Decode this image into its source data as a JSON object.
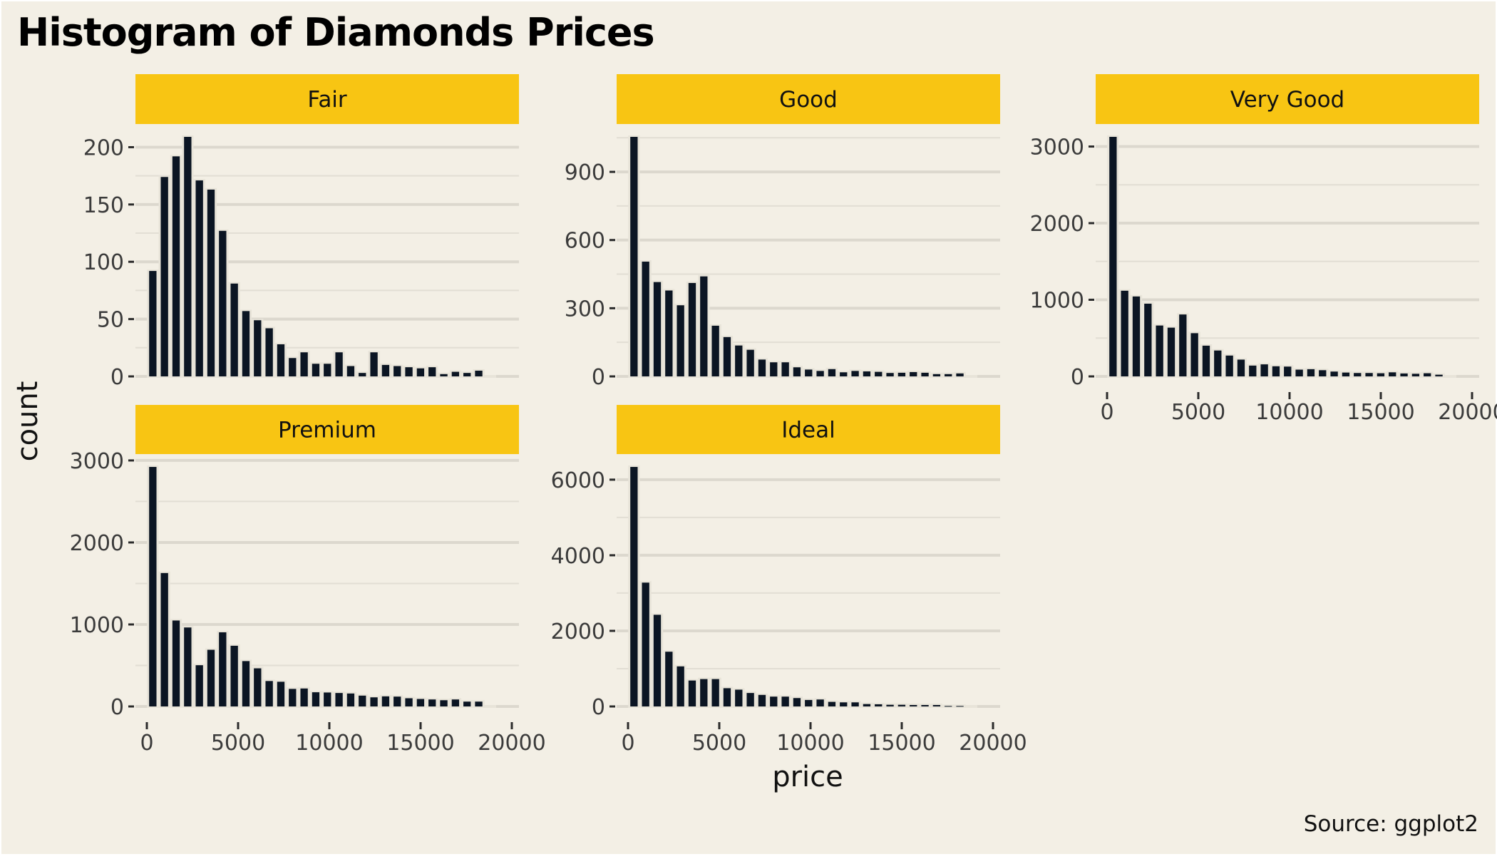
{
  "colors": {
    "background": "#F3EFE5",
    "strip": "#F8C513",
    "bar_fill": "#0B1523",
    "bar_outline": "#E8E4D9",
    "grid_major": "#DCD8CE",
    "grid_minor": "#E2DED4",
    "tick_mark": "#2b2b2b"
  },
  "chart_data": {
    "type": "bar",
    "subtype": "faceted histogram",
    "title": "Histogram of Diamonds Prices",
    "xlabel": "price",
    "ylabel": "count",
    "caption": "Source: ggplot2",
    "grid": true,
    "bins": 30,
    "bin_range": [
      326,
      18823
    ],
    "xlim": [
      -500,
      20000
    ],
    "xticks": [
      0,
      5000,
      10000,
      15000,
      20000
    ],
    "xtick_labels": [
      "0",
      "5000",
      "10000",
      "15000",
      "20000"
    ],
    "facets": [
      {
        "name": "Fair",
        "ylim": [
          0,
          212
        ],
        "yticks": [
          0,
          50,
          100,
          150,
          200
        ],
        "ytick_labels": [
          "0",
          "50",
          "100",
          "150",
          "200"
        ],
        "counts": [
          92,
          174,
          192,
          209,
          171,
          163,
          127,
          81,
          57,
          49,
          42,
          28,
          16,
          21,
          11,
          11,
          21,
          9,
          3,
          21,
          10,
          9,
          8,
          7,
          8,
          2,
          4,
          3,
          5,
          0
        ]
      },
      {
        "name": "Good",
        "ylim": [
          0,
          1054
        ],
        "yticks": [
          0,
          300,
          600,
          900
        ],
        "ytick_labels": [
          "0",
          "300",
          "600",
          "900"
        ],
        "counts": [
          1054,
          505,
          415,
          378,
          313,
          411,
          440,
          223,
          173,
          136,
          117,
          74,
          62,
          62,
          40,
          30,
          24,
          32,
          18,
          24,
          22,
          20,
          15,
          16,
          19,
          16,
          10,
          10,
          13,
          0
        ]
      },
      {
        "name": "Very Good",
        "ylim": [
          0,
          3126
        ],
        "yticks": [
          0,
          1000,
          2000,
          3000
        ],
        "ytick_labels": [
          "0",
          "1000",
          "2000",
          "3000"
        ],
        "counts": [
          3126,
          1118,
          1043,
          949,
          664,
          636,
          808,
          564,
          401,
          338,
          272,
          219,
          141,
          157,
          132,
          128,
          88,
          94,
          81,
          63,
          50,
          44,
          44,
          41,
          53,
          38,
          34,
          41,
          22,
          0
        ]
      },
      {
        "name": "Premium",
        "ylim": [
          0,
          3000
        ],
        "yticks": [
          0,
          1000,
          2000,
          3000
        ],
        "ytick_labels": [
          "0",
          "1000",
          "2000",
          "3000"
        ],
        "counts": [
          2921,
          1627,
          1048,
          963,
          503,
          691,
          904,
          740,
          553,
          465,
          310,
          301,
          214,
          219,
          173,
          170,
          164,
          158,
          132,
          111,
          123,
          120,
          100,
          91,
          85,
          76,
          85,
          59,
          59,
          0
        ]
      },
      {
        "name": "Ideal",
        "ylim": [
          0,
          6337
        ],
        "yticks": [
          0,
          2000,
          4000,
          6000
        ],
        "ytick_labels": [
          "0",
          "2000",
          "4000",
          "6000"
        ],
        "counts": [
          6337,
          3276,
          2425,
          1448,
          1060,
          686,
          724,
          724,
          483,
          444,
          356,
          305,
          260,
          260,
          222,
          171,
          184,
          121,
          108,
          108,
          63,
          57,
          44,
          44,
          38,
          38,
          38,
          13,
          13,
          0
        ]
      }
    ]
  }
}
